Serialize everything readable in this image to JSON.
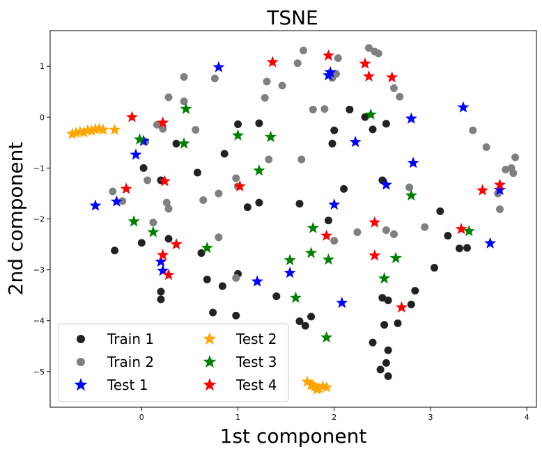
{
  "chart_data": {
    "type": "scatter",
    "title": "TSNE",
    "xlabel": "1st component",
    "ylabel": "2nd component",
    "xlim": [
      -0.95,
      4.1
    ],
    "ylim": [
      -5.7,
      1.7
    ],
    "xticks": [
      0,
      1,
      2,
      3,
      4
    ],
    "yticks": [
      -5,
      -4,
      -3,
      -2,
      -1,
      0,
      1
    ],
    "grid": false,
    "legend_position": "bottom-left",
    "legend_columns": 2,
    "series": [
      {
        "name": "Train 1",
        "marker": "circle",
        "color": "#222222",
        "points": [
          [
            0.36,
            -0.52
          ],
          [
            0.02,
            -1.0
          ],
          [
            0.58,
            -1.09
          ],
          [
            0.2,
            -1.24
          ],
          [
            -0.28,
            -2.62
          ],
          [
            0.0,
            -2.47
          ],
          [
            0.28,
            -2.39
          ],
          [
            0.62,
            -2.67
          ],
          [
            0.68,
            -3.19
          ],
          [
            0.84,
            -3.32
          ],
          [
            0.74,
            -3.84
          ],
          [
            0.98,
            -3.9
          ],
          [
            1.0,
            -3.08
          ],
          [
            0.86,
            -0.72
          ],
          [
            1.0,
            -0.14
          ],
          [
            1.22,
            -0.12
          ],
          [
            1.1,
            -1.77
          ],
          [
            1.22,
            -1.68
          ],
          [
            1.4,
            -3.52
          ],
          [
            1.64,
            -1.7
          ],
          [
            1.64,
            -4.01
          ],
          [
            1.7,
            -4.1
          ],
          [
            1.76,
            -3.92
          ],
          [
            1.94,
            -2.03
          ],
          [
            2.0,
            -0.26
          ],
          [
            1.98,
            -0.52
          ],
          [
            2.1,
            -1.41
          ],
          [
            2.16,
            0.15
          ],
          [
            2.32,
            0.0
          ],
          [
            2.4,
            -0.24
          ],
          [
            2.5,
            -1.24
          ],
          [
            2.54,
            -0.13
          ],
          [
            2.5,
            -3.55
          ],
          [
            2.56,
            -3.6
          ],
          [
            2.66,
            -4.05
          ],
          [
            2.52,
            -4.08
          ],
          [
            2.4,
            -4.43
          ],
          [
            2.56,
            -4.58
          ],
          [
            2.54,
            -4.83
          ],
          [
            2.48,
            -4.96
          ],
          [
            2.56,
            -5.09
          ],
          [
            2.8,
            -3.68
          ],
          [
            2.84,
            -3.41
          ],
          [
            3.04,
            -2.96
          ],
          [
            3.1,
            -1.85
          ],
          [
            3.18,
            -2.33
          ],
          [
            3.3,
            -2.58
          ],
          [
            3.38,
            -2.57
          ],
          [
            0.2,
            -3.43
          ],
          [
            0.2,
            -3.58
          ]
        ]
      },
      {
        "name": "Train 2",
        "marker": "circle",
        "color": "#808080",
        "points": [
          [
            -0.3,
            -1.46
          ],
          [
            -0.2,
            -1.65
          ],
          [
            0.06,
            -1.24
          ],
          [
            0.12,
            -2.07
          ],
          [
            0.26,
            -1.68
          ],
          [
            0.28,
            -1.8
          ],
          [
            0.28,
            0.39
          ],
          [
            0.44,
            0.79
          ],
          [
            0.44,
            0.31
          ],
          [
            0.56,
            -0.25
          ],
          [
            0.64,
            -1.63
          ],
          [
            0.76,
            0.76
          ],
          [
            0.8,
            -1.5
          ],
          [
            0.8,
            -2.36
          ],
          [
            0.98,
            -3.16
          ],
          [
            0.98,
            -1.2
          ],
          [
            1.0,
            -1.36
          ],
          [
            1.28,
            0.38
          ],
          [
            1.3,
            0.7
          ],
          [
            1.32,
            -0.83
          ],
          [
            1.46,
            0.62
          ],
          [
            1.62,
            1.06
          ],
          [
            1.66,
            -0.83
          ],
          [
            1.68,
            1.31
          ],
          [
            1.78,
            0.15
          ],
          [
            1.9,
            0.16
          ],
          [
            1.98,
            0.77
          ],
          [
            2.02,
            0.85
          ],
          [
            2.04,
            1.16
          ],
          [
            2.0,
            -2.43
          ],
          [
            2.24,
            -2.26
          ],
          [
            2.36,
            1.36
          ],
          [
            2.42,
            1.29
          ],
          [
            2.46,
            1.25
          ],
          [
            2.54,
            -2.22
          ],
          [
            2.62,
            -2.3
          ],
          [
            2.62,
            0.57
          ],
          [
            2.68,
            0.4
          ],
          [
            2.78,
            -1.38
          ],
          [
            2.94,
            -2.16
          ],
          [
            3.44,
            -0.26
          ],
          [
            3.58,
            -0.59
          ],
          [
            3.7,
            -1.5
          ],
          [
            3.72,
            -1.81
          ],
          [
            3.78,
            -1.03
          ],
          [
            3.84,
            -1.0
          ],
          [
            3.86,
            -1.1
          ],
          [
            3.88,
            -0.79
          ],
          [
            0.04,
            -0.48
          ],
          [
            0.16,
            -0.15
          ],
          [
            0.22,
            -0.23
          ]
        ]
      },
      {
        "name": "Test 1",
        "marker": "star",
        "color": "#0000ff",
        "points": [
          [
            -0.48,
            -1.74
          ],
          [
            -0.26,
            -1.66
          ],
          [
            -0.06,
            -0.74
          ],
          [
            0.02,
            -0.47
          ],
          [
            0.2,
            -2.84
          ],
          [
            0.22,
            -3.02
          ],
          [
            0.8,
            0.98
          ],
          [
            1.2,
            -3.23
          ],
          [
            1.54,
            -3.06
          ],
          [
            1.94,
            0.82
          ],
          [
            1.96,
            0.88
          ],
          [
            2.0,
            -1.72
          ],
          [
            2.08,
            -3.65
          ],
          [
            2.22,
            -0.49
          ],
          [
            2.54,
            -1.33
          ],
          [
            2.8,
            -0.03
          ],
          [
            2.82,
            -0.9
          ],
          [
            3.34,
            0.19
          ],
          [
            3.62,
            -2.48
          ],
          [
            3.72,
            -1.43
          ]
        ]
      },
      {
        "name": "Test 2",
        "marker": "star",
        "color": "#ffa500",
        "points": [
          [
            -0.72,
            -0.33
          ],
          [
            -0.68,
            -0.31
          ],
          [
            -0.64,
            -0.29
          ],
          [
            -0.6,
            -0.3
          ],
          [
            -0.56,
            -0.26
          ],
          [
            -0.52,
            -0.27
          ],
          [
            -0.48,
            -0.24
          ],
          [
            -0.44,
            -0.23
          ],
          [
            -0.4,
            -0.25
          ],
          [
            -0.28,
            -0.25
          ],
          [
            1.72,
            -5.2
          ],
          [
            1.76,
            -5.26
          ],
          [
            1.8,
            -5.3
          ],
          [
            1.84,
            -5.33
          ],
          [
            1.88,
            -5.29
          ],
          [
            1.92,
            -5.31
          ],
          [
            1.82,
            -5.35
          ],
          [
            1.78,
            -5.27
          ]
        ]
      },
      {
        "name": "Test 3",
        "marker": "star",
        "color": "#008000",
        "points": [
          [
            -0.02,
            -0.44
          ],
          [
            -0.08,
            -2.05
          ],
          [
            0.12,
            -2.26
          ],
          [
            0.44,
            -0.52
          ],
          [
            0.46,
            0.16
          ],
          [
            0.68,
            -2.57
          ],
          [
            1.0,
            -0.36
          ],
          [
            1.22,
            -1.05
          ],
          [
            1.34,
            -0.39
          ],
          [
            1.54,
            -2.81
          ],
          [
            1.6,
            -3.55
          ],
          [
            1.76,
            -2.67
          ],
          [
            1.78,
            -2.18
          ],
          [
            1.92,
            -4.33
          ],
          [
            1.94,
            -2.8
          ],
          [
            2.38,
            0.05
          ],
          [
            2.52,
            -3.17
          ],
          [
            2.64,
            -2.77
          ],
          [
            2.8,
            -1.54
          ],
          [
            3.4,
            -2.24
          ]
        ]
      },
      {
        "name": "Test 4",
        "marker": "star",
        "color": "#ff0000",
        "points": [
          [
            -0.16,
            -1.41
          ],
          [
            -0.1,
            0.0
          ],
          [
            0.22,
            -0.11
          ],
          [
            0.24,
            -1.26
          ],
          [
            0.22,
            -2.71
          ],
          [
            0.28,
            -3.1
          ],
          [
            0.36,
            -2.5
          ],
          [
            1.02,
            -1.36
          ],
          [
            1.36,
            1.08
          ],
          [
            1.92,
            -2.33
          ],
          [
            1.94,
            1.21
          ],
          [
            2.32,
            1.05
          ],
          [
            2.36,
            0.8
          ],
          [
            2.42,
            -2.07
          ],
          [
            2.42,
            -2.72
          ],
          [
            2.6,
            0.78
          ],
          [
            2.7,
            -3.74
          ],
          [
            3.32,
            -2.2
          ],
          [
            3.54,
            -1.44
          ],
          [
            3.72,
            -1.33
          ]
        ]
      }
    ]
  }
}
